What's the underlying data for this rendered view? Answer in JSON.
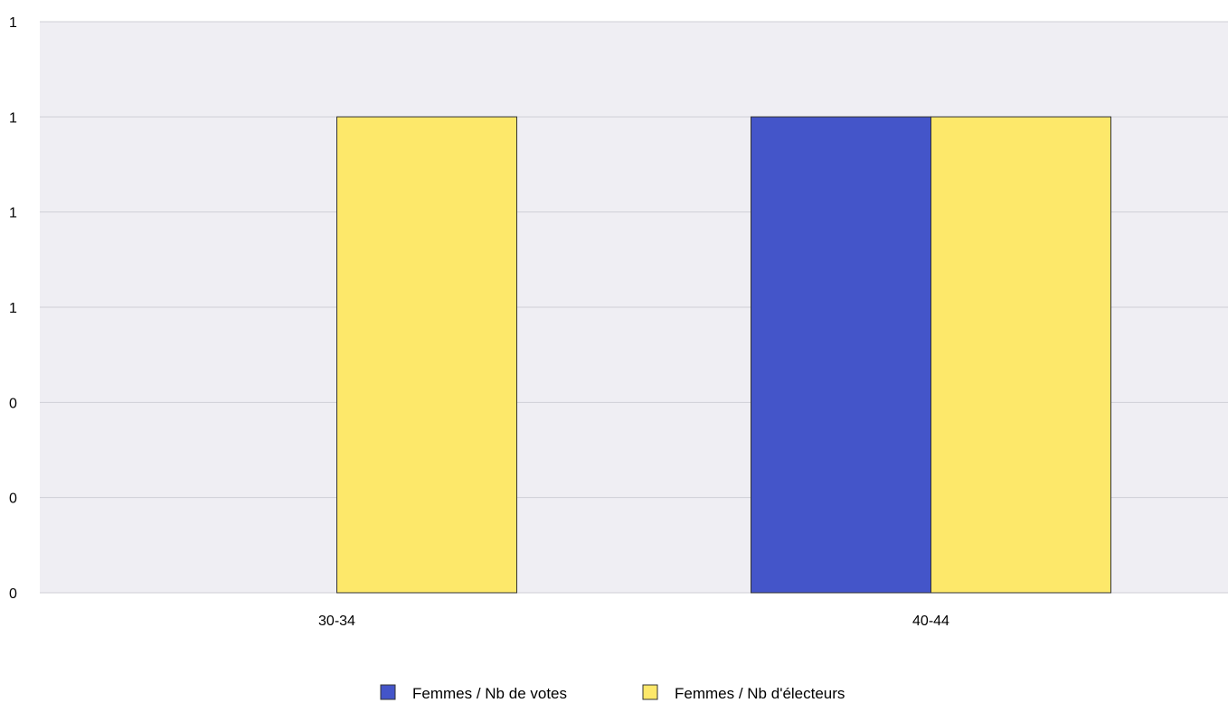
{
  "chart_data": {
    "type": "bar",
    "title": "",
    "xlabel": "",
    "ylabel": "",
    "categories": [
      "30-34",
      "40-44"
    ],
    "series": [
      {
        "name": "Femmes / Nb de votes",
        "values": [
          0,
          1
        ]
      },
      {
        "name": "Femmes / Nb d'électeurs",
        "values": [
          1,
          1
        ]
      }
    ],
    "ylim": [
      0,
      1.2
    ],
    "yticks": [
      0,
      0.2,
      0.4,
      0.6,
      0.8,
      1.0,
      1.2
    ],
    "ytick_labels": [
      "0",
      "0",
      "0",
      "1",
      "1",
      "1",
      "1"
    ],
    "grid": true,
    "legend_position": "bottom",
    "colors": {
      "series": [
        "#4455c9",
        "#fde86a"
      ],
      "plot_background": "#efeef3",
      "gridline": "#cfcfd6",
      "bar_border": "#333333"
    }
  }
}
